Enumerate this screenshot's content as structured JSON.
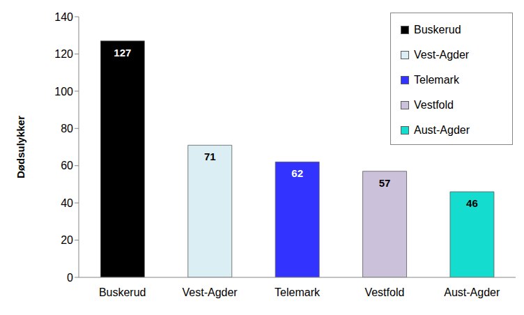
{
  "chart_data": {
    "type": "bar",
    "ylabel": "Dødsulykker",
    "categories": [
      "Buskerud",
      "Vest-Agder",
      "Telemark",
      "Vestfold",
      "Aust-Agder"
    ],
    "values": [
      127,
      71,
      62,
      57,
      46
    ],
    "colors": [
      "#000000",
      "#daeef3",
      "#3333ff",
      "#ccc1da",
      "#14dccf"
    ],
    "ylim": [
      0,
      140
    ],
    "yticks": [
      0,
      20,
      40,
      60,
      80,
      100,
      120,
      140
    ],
    "data_labels": true,
    "legend": "upper right",
    "grid": false
  }
}
